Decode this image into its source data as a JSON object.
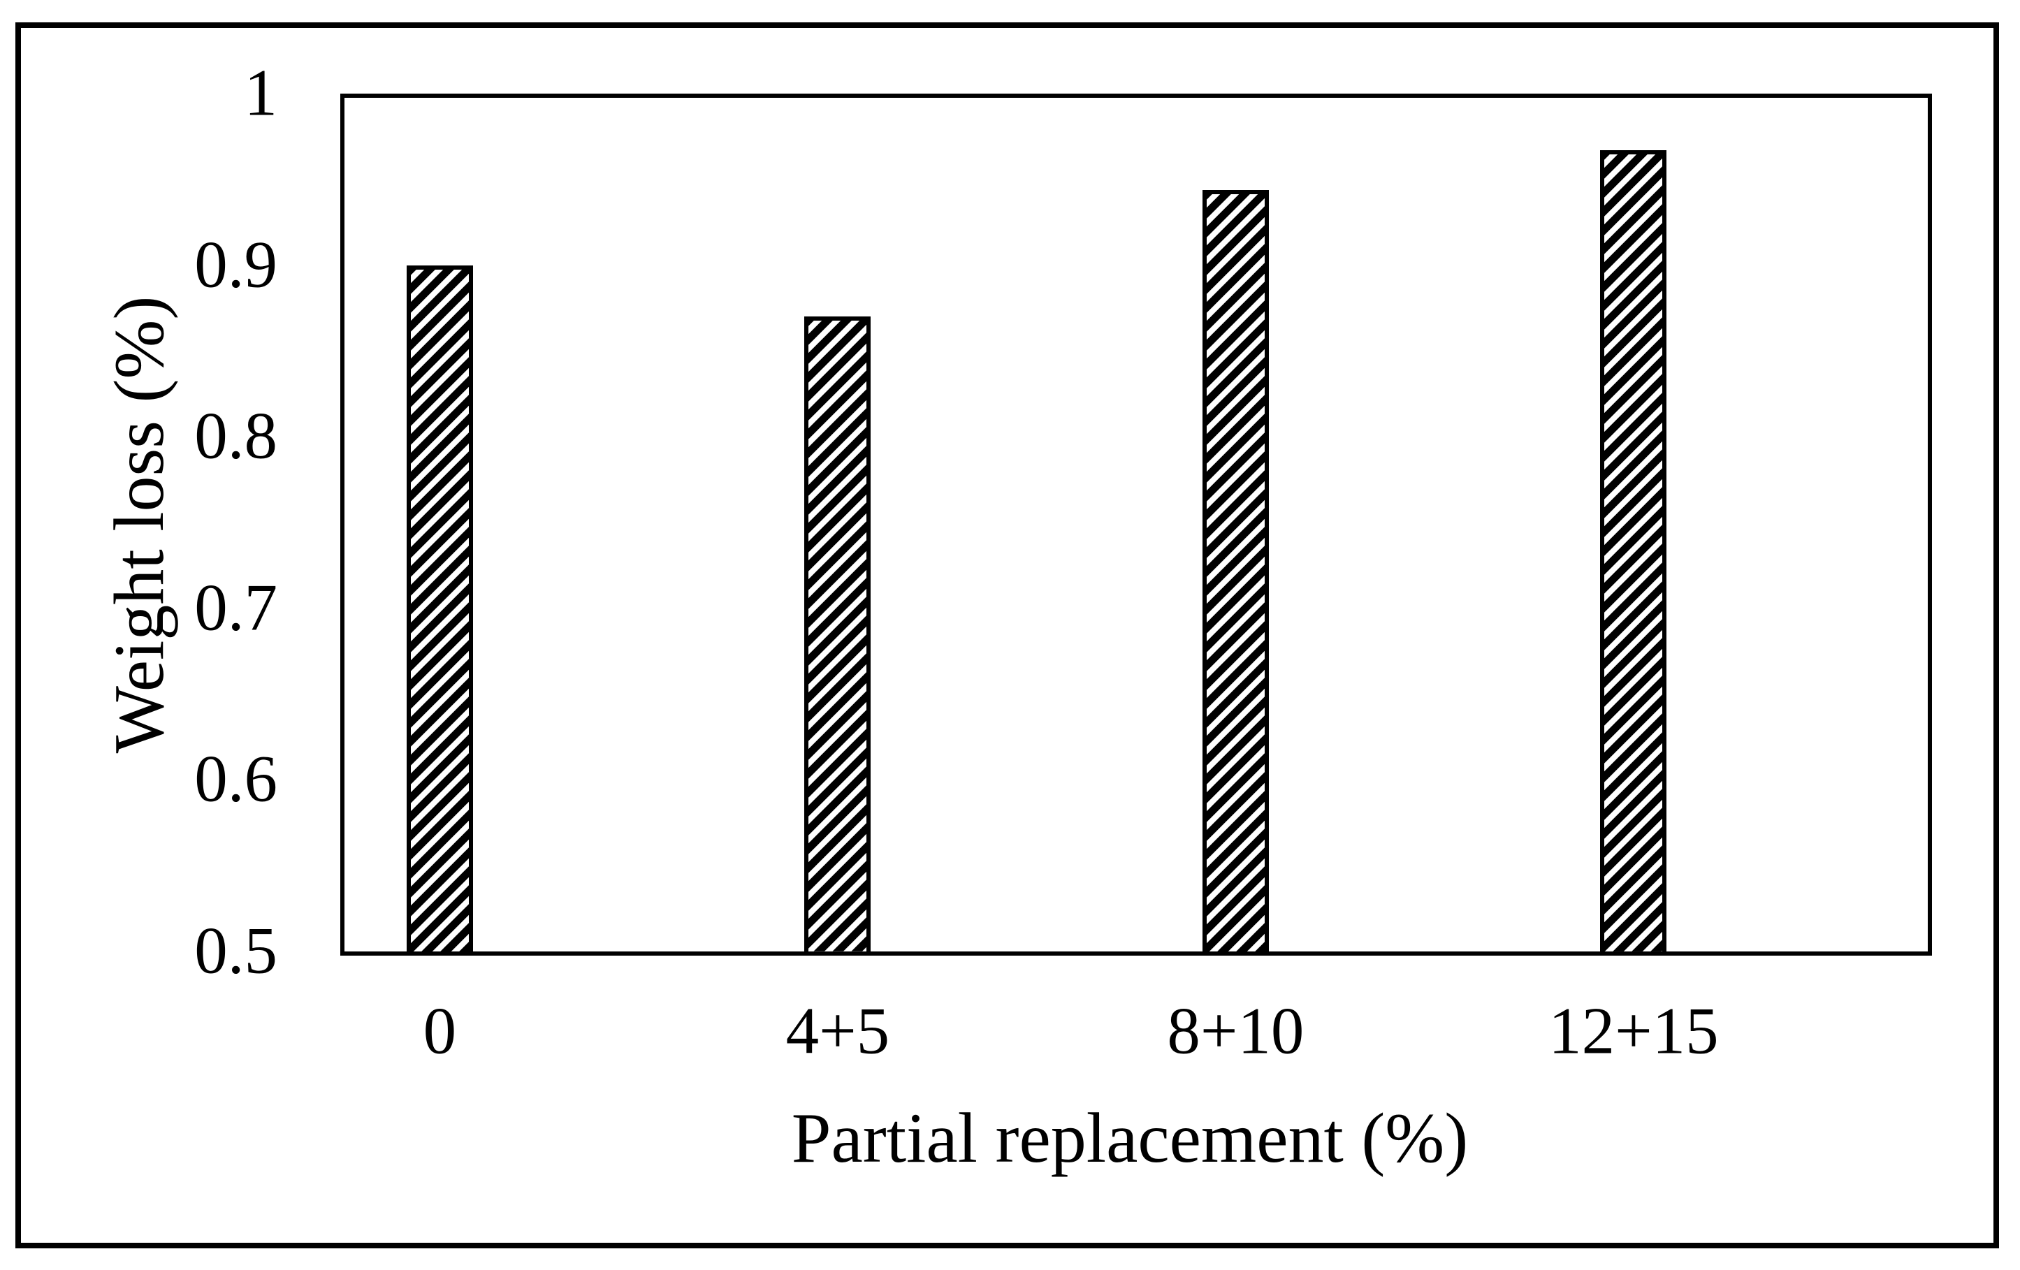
{
  "figure": {
    "background_color": "#ffffff",
    "border_color": "#000000",
    "plot_border_color": "#000000"
  },
  "chart_data": {
    "type": "bar",
    "title": "",
    "categories": [
      "0",
      "4+5",
      "8+10",
      "12+15"
    ],
    "values": [
      0.9,
      0.87,
      0.944,
      0.967
    ],
    "xlabel": "Partial replacement (%)",
    "ylabel": "Weight loss (%)",
    "ylim": [
      0.5,
      1.0
    ],
    "ytick_step": 0.1,
    "yticks": [
      "1",
      "0.9",
      "0.8",
      "0.7",
      "0.6",
      "0.5"
    ],
    "ytick_values": [
      1.0,
      0.9,
      0.8,
      0.7,
      0.6,
      0.5
    ],
    "grid": false,
    "legend": "none",
    "bar_style": {
      "fill": "diagonal-hatch",
      "hatch_direction": "/",
      "hatch_color": "#000000",
      "hatch_background": "#ffffff",
      "border_color": "#000000"
    }
  }
}
